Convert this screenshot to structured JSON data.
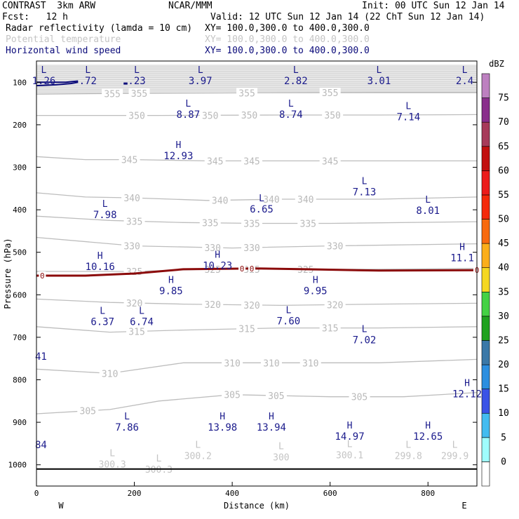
{
  "header": {
    "title": "CONTRAST  3km ARW",
    "producer": "NCAR/MMM",
    "init": "Init: 00 UTC Sun 12 Jan 14",
    "fcst": "Fcst:   12 h",
    "valid": "Valid: 12 UTC Sun 12 Jan 14 (22 ChT Sun 12 Jan 14)",
    "field1": "Radar reflectivity (lamda = 10 cm)",
    "field1_xy": "XY= 100.0,300.0 to 400.0,300.0",
    "field2": "Potential temperature",
    "field2_xy": "XY= 100.0,300.0 to 400.0,300.0",
    "field3": "Horizontal wind speed",
    "field3_xy": "XY= 100.0,300.0 to 400.0,300.0"
  },
  "chart_data": {
    "type": "cross-section",
    "xlabel": "Distance (km)",
    "ylabel": "Pressure (hPa)",
    "xlim": [
      0,
      900
    ],
    "ylim": [
      1050,
      50
    ],
    "x_ticks": [
      0,
      200,
      400,
      600,
      800
    ],
    "y_ticks": [
      100,
      200,
      300,
      400,
      500,
      600,
      700,
      800,
      900,
      1000
    ],
    "x_end_labels": {
      "left": "W",
      "right": "E"
    },
    "surface_pressure": 1010,
    "colorbar": {
      "unit": "dBZ",
      "levels": [
        0,
        5,
        10,
        15,
        20,
        25,
        30,
        35,
        40,
        45,
        50,
        55,
        60,
        65,
        70,
        75
      ],
      "colors": [
        "#ffffff",
        "#9ffdfd",
        "#43bcf0",
        "#3a53e6",
        "#2c8fe0",
        "#3a78a8",
        "#1fa21f",
        "#44d244",
        "#f5d820",
        "#fbae1a",
        "#f86a0e",
        "#f5290b",
        "#ec1b1b",
        "#c20f0f",
        "#a73a5a",
        "#8a2e8c",
        "#bd80c0"
      ]
    },
    "theta_lines": [
      {
        "value": 355,
        "p": [
          [
            0,
            128
          ],
          [
            200,
            126
          ],
          [
            450,
            125
          ],
          [
            700,
            124
          ],
          [
            900,
            124
          ]
        ],
        "labels": [
          [
            155,
            "355"
          ],
          [
            210,
            "355"
          ],
          [
            430,
            "355"
          ],
          [
            600,
            "355"
          ]
        ]
      },
      {
        "value": 350,
        "p": [
          [
            0,
            178
          ],
          [
            250,
            178
          ],
          [
            500,
            177
          ],
          [
            700,
            177
          ],
          [
            900,
            176
          ]
        ],
        "labels": [
          [
            205,
            "350"
          ],
          [
            355,
            "350"
          ],
          [
            435,
            "350"
          ],
          [
            605,
            "350"
          ]
        ]
      },
      {
        "value": 345,
        "p": [
          [
            0,
            275
          ],
          [
            100,
            282
          ],
          [
            200,
            282
          ],
          [
            350,
            285
          ],
          [
            500,
            285
          ],
          [
            700,
            285
          ],
          [
            900,
            285
          ]
        ],
        "labels": [
          [
            190,
            "345"
          ],
          [
            365,
            "345"
          ],
          [
            440,
            "345"
          ],
          [
            600,
            "345"
          ]
        ]
      },
      {
        "value": 340,
        "p": [
          [
            0,
            360
          ],
          [
            100,
            370
          ],
          [
            200,
            372
          ],
          [
            350,
            378
          ],
          [
            500,
            375
          ],
          [
            700,
            375
          ],
          [
            900,
            370
          ]
        ],
        "labels": [
          [
            195,
            "340"
          ],
          [
            375,
            "340"
          ],
          [
            480,
            "340"
          ],
          [
            550,
            "340"
          ]
        ]
      },
      {
        "value": 335,
        "p": [
          [
            0,
            415
          ],
          [
            150,
            425
          ],
          [
            300,
            430
          ],
          [
            450,
            432
          ],
          [
            600,
            432
          ],
          [
            900,
            428
          ]
        ],
        "labels": [
          [
            200,
            "335"
          ],
          [
            355,
            "335"
          ],
          [
            440,
            "335"
          ],
          [
            555,
            "335"
          ]
        ]
      },
      {
        "value": 330,
        "p": [
          [
            0,
            465
          ],
          [
            200,
            485
          ],
          [
            400,
            490
          ],
          [
            600,
            485
          ],
          [
            900,
            480
          ]
        ],
        "labels": [
          [
            195,
            "330"
          ],
          [
            360,
            "330"
          ],
          [
            440,
            "330"
          ],
          [
            610,
            "330"
          ]
        ]
      },
      {
        "value": 325,
        "p": [
          [
            0,
            545
          ],
          [
            200,
            545
          ],
          [
            350,
            540
          ],
          [
            500,
            540
          ],
          [
            700,
            540
          ],
          [
            900,
            538
          ]
        ],
        "labels": [
          [
            200,
            "325"
          ],
          [
            360,
            "325"
          ],
          [
            440,
            "325"
          ],
          [
            550,
            "325"
          ]
        ]
      },
      {
        "value": 320,
        "p": [
          [
            0,
            610
          ],
          [
            150,
            618
          ],
          [
            300,
            622
          ],
          [
            500,
            625
          ],
          [
            700,
            622
          ],
          [
            900,
            620
          ]
        ],
        "labels": [
          [
            200,
            "320"
          ],
          [
            360,
            "320"
          ],
          [
            440,
            "320"
          ],
          [
            610,
            "320"
          ]
        ]
      },
      {
        "value": 315,
        "p": [
          [
            0,
            675
          ],
          [
            150,
            688
          ],
          [
            300,
            683
          ],
          [
            500,
            678
          ],
          [
            700,
            678
          ],
          [
            900,
            675
          ]
        ],
        "labels": [
          [
            205,
            "315"
          ],
          [
            430,
            "315"
          ],
          [
            600,
            "315"
          ]
        ]
      },
      {
        "value": 310,
        "p": [
          [
            0,
            775
          ],
          [
            150,
            785
          ],
          [
            300,
            760
          ],
          [
            500,
            760
          ],
          [
            700,
            760
          ],
          [
            900,
            752
          ]
        ],
        "labels": [
          [
            150,
            "310"
          ],
          [
            400,
            "310"
          ],
          [
            480,
            "310"
          ],
          [
            560,
            "310"
          ]
        ]
      },
      {
        "value": 305,
        "p": [
          [
            0,
            880
          ],
          [
            150,
            870
          ],
          [
            250,
            850
          ],
          [
            400,
            835
          ],
          [
            600,
            840
          ],
          [
            750,
            840
          ],
          [
            900,
            830
          ]
        ],
        "labels": [
          [
            105,
            "305"
          ],
          [
            400,
            "305"
          ],
          [
            490,
            "305"
          ],
          [
            660,
            "305"
          ]
        ]
      }
    ],
    "reflectivity_zero_line": [
      [
        0,
        555
      ],
      [
        100,
        555
      ],
      [
        200,
        550
      ],
      [
        300,
        540
      ],
      [
        450,
        538
      ],
      [
        550,
        540
      ],
      [
        700,
        543
      ],
      [
        900,
        542
      ]
    ],
    "reflectivity_zero_labels": [
      [
        12,
        "0"
      ],
      [
        420,
        "0"
      ],
      [
        440,
        "0"
      ],
      [
        900,
        "0"
      ]
    ],
    "upper_blue_line": [
      [
        0,
        100
      ],
      [
        60,
        100
      ],
      [
        85,
        97
      ]
    ],
    "upper_blue_line2": [
      [
        0,
        108
      ],
      [
        40,
        106
      ],
      [
        70,
        103
      ],
      [
        85,
        100
      ]
    ],
    "upper_tick": [
      [
        178,
        103
      ],
      [
        186,
        103
      ]
    ],
    "wind_markers": [
      {
        "x": 15,
        "p": 78,
        "t": "L",
        "v": "1.26"
      },
      {
        "x": 105,
        "p": 78,
        "t": "L",
        "v": ".72"
      },
      {
        "x": 205,
        "p": 78,
        "t": "L",
        "v": ".23"
      },
      {
        "x": 335,
        "p": 78,
        "t": "L",
        "v": "3.97"
      },
      {
        "x": 530,
        "p": 78,
        "t": "L",
        "v": "2.82"
      },
      {
        "x": 700,
        "p": 78,
        "t": "L",
        "v": "3.01"
      },
      {
        "x": 875,
        "p": 78,
        "t": "L",
        "v": "2.4"
      },
      {
        "x": 310,
        "p": 157,
        "t": "L",
        "v": "8.87"
      },
      {
        "x": 520,
        "p": 157,
        "t": "L",
        "v": "8.74"
      },
      {
        "x": 760,
        "p": 163,
        "t": "L",
        "v": "7.14"
      },
      {
        "x": 290,
        "p": 255,
        "t": "H",
        "v": "12.93"
      },
      {
        "x": 670,
        "p": 340,
        "t": "L",
        "v": "7.13"
      },
      {
        "x": 460,
        "p": 380,
        "t": "L",
        "v": "6.65"
      },
      {
        "x": 800,
        "p": 383,
        "t": "L",
        "v": "8.01"
      },
      {
        "x": 140,
        "p": 393,
        "t": "L",
        "v": "7.98"
      },
      {
        "x": 870,
        "p": 495,
        "t": "H",
        "v": "11.1"
      },
      {
        "x": 130,
        "p": 515,
        "t": "H",
        "v": "10.16"
      },
      {
        "x": 370,
        "p": 513,
        "t": "H",
        "v": "10.23"
      },
      {
        "x": 275,
        "p": 572,
        "t": "H",
        "v": "9.85"
      },
      {
        "x": 570,
        "p": 572,
        "t": "H",
        "v": "9.95"
      },
      {
        "x": 135,
        "p": 645,
        "t": "L",
        "v": "6.37"
      },
      {
        "x": 215,
        "p": 645,
        "t": "L",
        "v": "6.74"
      },
      {
        "x": 515,
        "p": 643,
        "t": "L",
        "v": "7.60"
      },
      {
        "x": 670,
        "p": 688,
        "t": "L",
        "v": "7.02"
      },
      {
        "x": 880,
        "p": 815,
        "t": "H",
        "v": "12.12"
      },
      {
        "x": 185,
        "p": 893,
        "t": "L",
        "v": "7.86"
      },
      {
        "x": 380,
        "p": 893,
        "t": "H",
        "v": "13.98"
      },
      {
        "x": 480,
        "p": 893,
        "t": "H",
        "v": "13.94"
      },
      {
        "x": 640,
        "p": 915,
        "t": "H",
        "v": "14.97"
      },
      {
        "x": 800,
        "p": 915,
        "t": "H",
        "v": "12.65"
      }
    ],
    "edge_values": [
      {
        "x": 0,
        "p": 745,
        "v": "41"
      },
      {
        "x": 0,
        "p": 953,
        "v": "84"
      }
    ],
    "surface_theta_markers": [
      {
        "x": 155,
        "p": 990,
        "t": "L",
        "v": "300.3"
      },
      {
        "x": 250,
        "p": 1002,
        "t": "L",
        "v": "300.3"
      },
      {
        "x": 330,
        "p": 970,
        "t": "L",
        "v": "300.2"
      },
      {
        "x": 500,
        "p": 973,
        "t": "L",
        "v": "300"
      },
      {
        "x": 640,
        "p": 968,
        "t": "L",
        "v": "300.1"
      },
      {
        "x": 760,
        "p": 970,
        "t": "L",
        "v": "299.8"
      },
      {
        "x": 855,
        "p": 970,
        "t": "L",
        "v": "299.9"
      }
    ]
  }
}
